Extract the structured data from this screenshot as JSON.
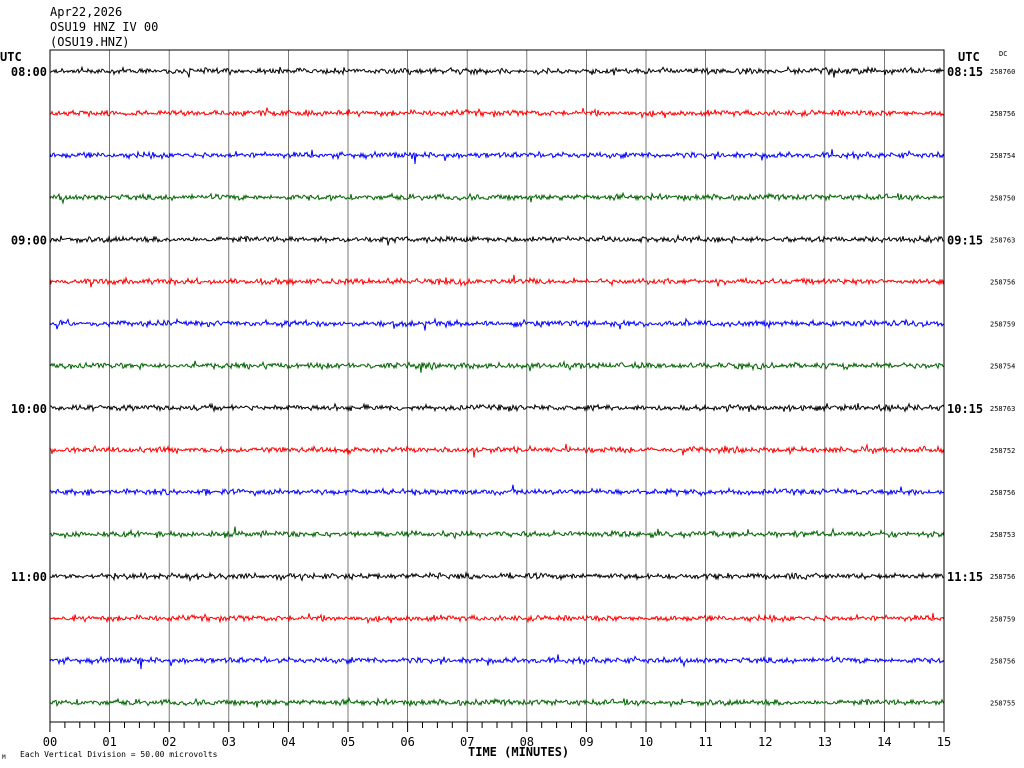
{
  "header": {
    "date": "Apr22,2026",
    "station_line": "OSU19 HNZ IV 00",
    "station_code": "(OSU19.HNZ)"
  },
  "left_tz": "UTC",
  "right_tz": "UTC",
  "dc_label": "DC",
  "footer": {
    "scale_note": "Each Vertical Division =   50.00 microvolts",
    "corner_mark": "M"
  },
  "chart_data": {
    "type": "line",
    "title": "",
    "xlabel": "TIME (MINUTES)",
    "ylabel": "",
    "xlim": [
      0,
      15
    ],
    "x_ticks": [
      "00",
      "01",
      "02",
      "03",
      "04",
      "05",
      "06",
      "07",
      "08",
      "09",
      "10",
      "11",
      "12",
      "13",
      "14",
      "15"
    ],
    "grid": true,
    "left_time_labels": [
      "08:00",
      "09:00",
      "10:00",
      "11:00"
    ],
    "right_time_labels": [
      "08:15",
      "09:15",
      "10:15",
      "11:15"
    ],
    "trace_colors": [
      "#000000",
      "#ff0000",
      "#0000ff",
      "#006400"
    ],
    "dc_offsets": [
      "258760",
      "258756",
      "258754",
      "258750",
      "258763",
      "258756",
      "258759",
      "258754",
      "258763",
      "258752",
      "258756",
      "258753",
      "258756",
      "258759",
      "258756",
      "258755"
    ]
  }
}
